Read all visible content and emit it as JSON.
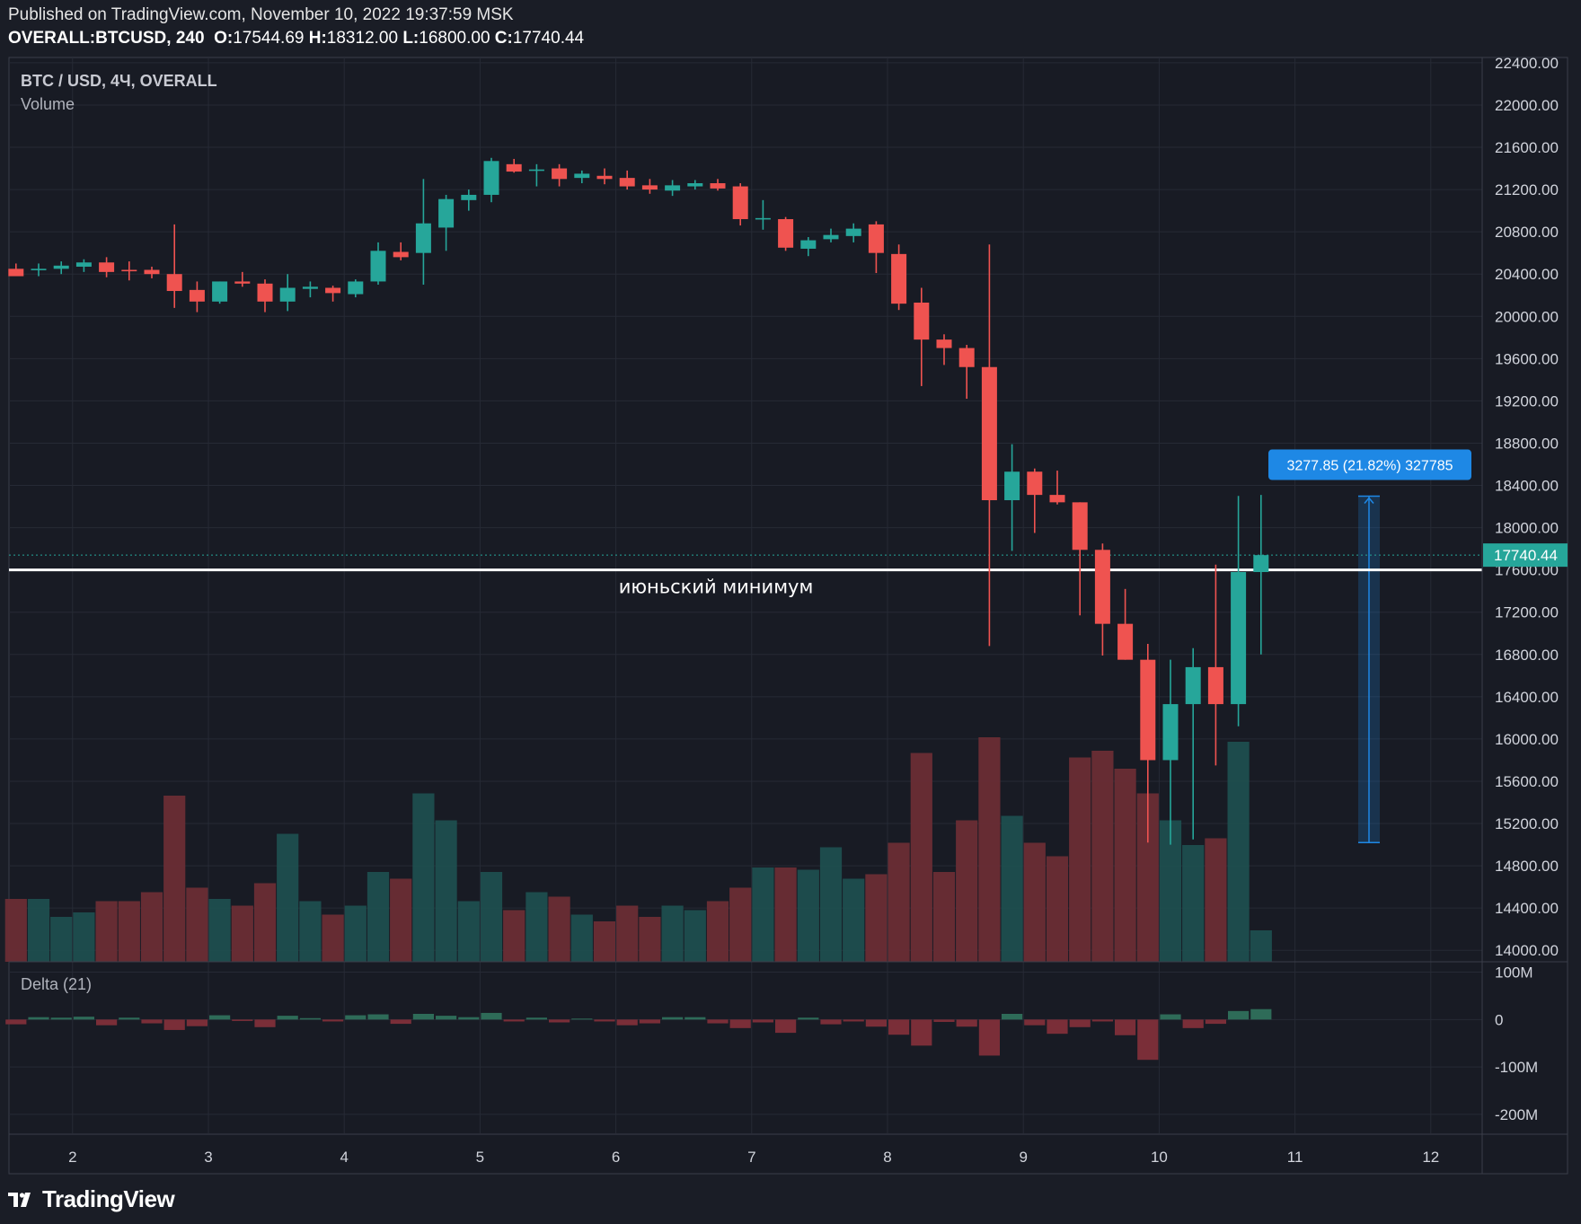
{
  "header": {
    "published": "Published on TradingView.com, November 10, 2022 19:37:59 MSK",
    "symbol": "OVERALL:BTCUSD, 240",
    "o_label": "O:",
    "o_value": "17544.69",
    "h_label": "H:",
    "h_value": "18312.00",
    "l_label": "L:",
    "l_value": "16800.00",
    "c_label": "C:",
    "c_value": "17740.44"
  },
  "legend": {
    "title": "BTC / USD, 4Ч, OVERALL",
    "volume": "Volume",
    "delta": "Delta (21)"
  },
  "annotations": {
    "support_label": "июньский минимум",
    "support_price": 17600,
    "measure_label": "3277.85 (21.82%) 327785",
    "measure_from": 15020,
    "measure_to": 18298,
    "last_price": "17740.44",
    "last_price_value": 17740.44
  },
  "colors": {
    "background": "#1a1d26",
    "up": "#26a69a",
    "down": "#ef5350",
    "measure": "#1e88e5",
    "support_line": "#ffffff",
    "grid": "#262a35"
  },
  "footer": {
    "brand": "TradingView",
    "logo": "tradingview-logo-icon"
  },
  "chart_data": {
    "type": "candlestick",
    "title": "BTC / USD, 4Ч, OVERALL",
    "interval": "4h",
    "y_ticks": [
      "22400.00",
      "22000.00",
      "21600.00",
      "21200.00",
      "20800.00",
      "20400.00",
      "20000.00",
      "19600.00",
      "19200.00",
      "18800.00",
      "18400.00",
      "18000.00",
      "17600.00",
      "17200.00",
      "16800.00",
      "16400.00",
      "16000.00",
      "15600.00",
      "15200.00",
      "14800.00",
      "14400.00",
      "14000.00"
    ],
    "price_range": [
      13900,
      22450
    ],
    "x_ticks": [
      "2",
      "3",
      "4",
      "5",
      "6",
      "7",
      "8",
      "9",
      "10",
      "11",
      "12"
    ],
    "x_tick_bars": [
      2.5,
      8.5,
      14.5,
      20.5,
      26.5,
      32.5,
      38.5,
      44.5,
      50.5,
      56.5,
      62.5
    ],
    "delta_ticks": [
      "100M",
      "0",
      "-100M",
      "-200M"
    ],
    "delta_range": [
      -240,
      120
    ],
    "volume_max": 100,
    "candles": [
      {
        "o": 20450,
        "h": 20500,
        "l": 20390,
        "c": 20380,
        "v": 28,
        "d": -10
      },
      {
        "o": 20440,
        "h": 20500,
        "l": 20380,
        "c": 20450,
        "v": 28,
        "d": 5
      },
      {
        "o": 20450,
        "h": 20520,
        "l": 20400,
        "c": 20480,
        "v": 20,
        "d": 4
      },
      {
        "o": 20470,
        "h": 20540,
        "l": 20420,
        "c": 20510,
        "v": 22,
        "d": 6
      },
      {
        "o": 20510,
        "h": 20560,
        "l": 20370,
        "c": 20420,
        "v": 27,
        "d": -12
      },
      {
        "o": 20440,
        "h": 20520,
        "l": 20340,
        "c": 20430,
        "v": 27,
        "d": 4
      },
      {
        "o": 20440,
        "h": 20470,
        "l": 20360,
        "c": 20400,
        "v": 31,
        "d": -8
      },
      {
        "o": 20400,
        "h": 20870,
        "l": 20080,
        "c": 20240,
        "v": 74,
        "d": -22
      },
      {
        "o": 20250,
        "h": 20330,
        "l": 20040,
        "c": 20140,
        "v": 33,
        "d": -14
      },
      {
        "o": 20140,
        "h": 20330,
        "l": 20120,
        "c": 20330,
        "v": 28,
        "d": 9
      },
      {
        "o": 20330,
        "h": 20420,
        "l": 20280,
        "c": 20310,
        "v": 25,
        "d": -3
      },
      {
        "o": 20310,
        "h": 20350,
        "l": 20040,
        "c": 20140,
        "v": 35,
        "d": -16
      },
      {
        "o": 20140,
        "h": 20400,
        "l": 20050,
        "c": 20270,
        "v": 57,
        "d": 8
      },
      {
        "o": 20260,
        "h": 20330,
        "l": 20180,
        "c": 20280,
        "v": 27,
        "d": 3
      },
      {
        "o": 20270,
        "h": 20290,
        "l": 20140,
        "c": 20220,
        "v": 21,
        "d": -4
      },
      {
        "o": 20210,
        "h": 20350,
        "l": 20180,
        "c": 20330,
        "v": 25,
        "d": 9
      },
      {
        "o": 20330,
        "h": 20700,
        "l": 20300,
        "c": 20620,
        "v": 40,
        "d": 11
      },
      {
        "o": 20610,
        "h": 20700,
        "l": 20530,
        "c": 20560,
        "v": 37,
        "d": -9
      },
      {
        "o": 20600,
        "h": 21300,
        "l": 20300,
        "c": 20880,
        "v": 75,
        "d": 12
      },
      {
        "o": 20840,
        "h": 21150,
        "l": 20620,
        "c": 21110,
        "v": 63,
        "d": 8
      },
      {
        "o": 21100,
        "h": 21200,
        "l": 21000,
        "c": 21150,
        "v": 27,
        "d": 5
      },
      {
        "o": 21150,
        "h": 21500,
        "l": 21080,
        "c": 21470,
        "v": 40,
        "d": 14
      },
      {
        "o": 21440,
        "h": 21490,
        "l": 21360,
        "c": 21370,
        "v": 23,
        "d": -4
      },
      {
        "o": 21390,
        "h": 21440,
        "l": 21230,
        "c": 21390,
        "v": 31,
        "d": 4
      },
      {
        "o": 21400,
        "h": 21440,
        "l": 21230,
        "c": 21300,
        "v": 29,
        "d": -6
      },
      {
        "o": 21310,
        "h": 21380,
        "l": 21260,
        "c": 21350,
        "v": 21,
        "d": 2
      },
      {
        "o": 21330,
        "h": 21400,
        "l": 21250,
        "c": 21300,
        "v": 18,
        "d": -4
      },
      {
        "o": 21310,
        "h": 21380,
        "l": 21200,
        "c": 21230,
        "v": 25,
        "d": -12
      },
      {
        "o": 21240,
        "h": 21300,
        "l": 21160,
        "c": 21200,
        "v": 20,
        "d": -8
      },
      {
        "o": 21190,
        "h": 21290,
        "l": 21140,
        "c": 21240,
        "v": 25,
        "d": 5
      },
      {
        "o": 21230,
        "h": 21290,
        "l": 21200,
        "c": 21260,
        "v": 23,
        "d": 5
      },
      {
        "o": 21260,
        "h": 21300,
        "l": 21190,
        "c": 21210,
        "v": 27,
        "d": -8
      },
      {
        "o": 21230,
        "h": 21260,
        "l": 20860,
        "c": 20920,
        "v": 33,
        "d": -18
      },
      {
        "o": 20930,
        "h": 21100,
        "l": 20820,
        "c": 20930,
        "v": 42,
        "d": -6
      },
      {
        "o": 20920,
        "h": 20940,
        "l": 20620,
        "c": 20650,
        "v": 42,
        "d": -28
      },
      {
        "o": 20640,
        "h": 20750,
        "l": 20570,
        "c": 20720,
        "v": 41,
        "d": 4
      },
      {
        "o": 20730,
        "h": 20830,
        "l": 20700,
        "c": 20770,
        "v": 51,
        "d": -10
      },
      {
        "o": 20760,
        "h": 20880,
        "l": 20700,
        "c": 20830,
        "v": 37,
        "d": -4
      },
      {
        "o": 20870,
        "h": 20900,
        "l": 20410,
        "c": 20600,
        "v": 39,
        "d": -15
      },
      {
        "o": 20590,
        "h": 20680,
        "l": 20060,
        "c": 20120,
        "v": 53,
        "d": -32
      },
      {
        "o": 20130,
        "h": 20270,
        "l": 19340,
        "c": 19780,
        "v": 93,
        "d": -55
      },
      {
        "o": 19780,
        "h": 19830,
        "l": 19540,
        "c": 19700,
        "v": 40,
        "d": -5
      },
      {
        "o": 19700,
        "h": 19730,
        "l": 19220,
        "c": 19520,
        "v": 63,
        "d": -15
      },
      {
        "o": 19520,
        "h": 20680,
        "l": 16880,
        "c": 18260,
        "v": 100,
        "d": -76
      },
      {
        "o": 18260,
        "h": 18790,
        "l": 17780,
        "c": 18530,
        "v": 65,
        "d": 12
      },
      {
        "o": 18530,
        "h": 18560,
        "l": 17950,
        "c": 18310,
        "v": 53,
        "d": -12
      },
      {
        "o": 18310,
        "h": 18540,
        "l": 18220,
        "c": 18240,
        "v": 47,
        "d": -30
      },
      {
        "o": 18240,
        "h": 18240,
        "l": 17170,
        "c": 17790,
        "v": 91,
        "d": -16
      },
      {
        "o": 17790,
        "h": 17850,
        "l": 16790,
        "c": 17090,
        "v": 94,
        "d": -4
      },
      {
        "o": 17090,
        "h": 17420,
        "l": 16750,
        "c": 16750,
        "v": 86,
        "d": -33
      },
      {
        "o": 16750,
        "h": 16900,
        "l": 15020,
        "c": 15800,
        "v": 75,
        "d": -85
      },
      {
        "o": 15800,
        "h": 16750,
        "l": 15000,
        "c": 16330,
        "v": 63,
        "d": 11
      },
      {
        "o": 16330,
        "h": 16860,
        "l": 15050,
        "c": 16680,
        "v": 52,
        "d": -18
      },
      {
        "o": 16680,
        "h": 17650,
        "l": 15750,
        "c": 16330,
        "v": 55,
        "d": -9
      },
      {
        "o": 16330,
        "h": 18300,
        "l": 16120,
        "c": 17580,
        "v": 98,
        "d": 18
      },
      {
        "o": 17580,
        "h": 18310,
        "l": 16800,
        "c": 17740,
        "v": 14,
        "d": 22
      }
    ]
  }
}
